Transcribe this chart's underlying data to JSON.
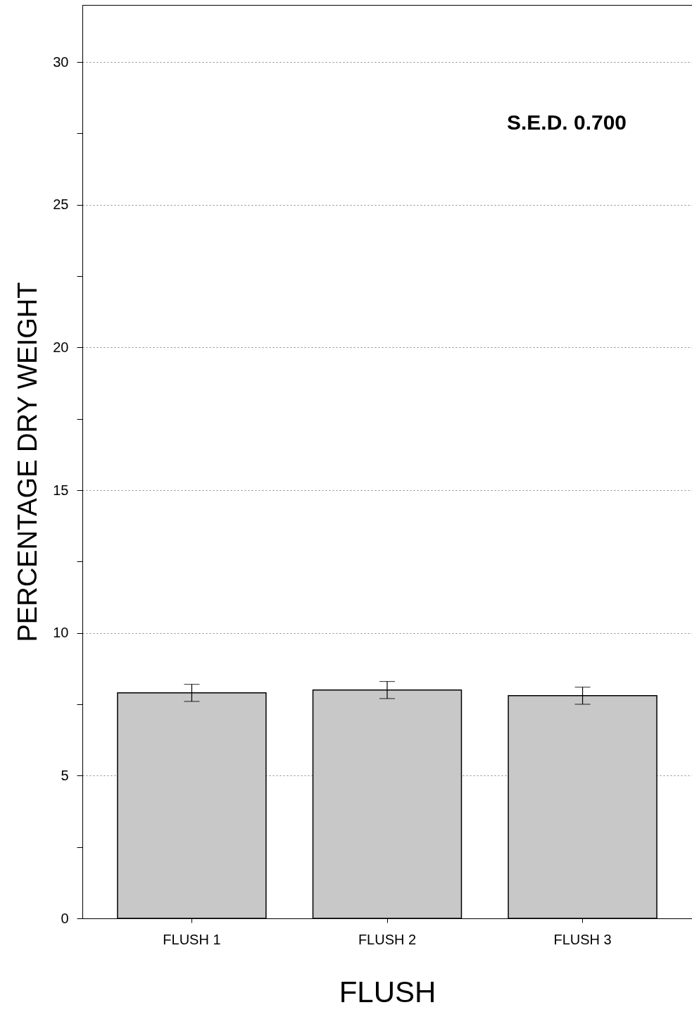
{
  "chart_data": {
    "type": "bar",
    "xlabel": "FLUSH",
    "ylabel": "PERCENTAGE DRY WEIGHT",
    "categories": [
      "FLUSH 1",
      "FLUSH 2",
      "FLUSH 3"
    ],
    "values": [
      7.9,
      8.0,
      7.8
    ],
    "errors": [
      0.3,
      0.3,
      0.3
    ],
    "color": "#c8c8c8",
    "ylim": [
      0,
      32
    ],
    "yticks": [
      0,
      {
        "value": 2.5,
        "label": null
      },
      5,
      {
        "value": 7.5,
        "label": null
      },
      10,
      {
        "value": 12.5,
        "label": null
      },
      15,
      {
        "value": 17.5,
        "label": null
      },
      20,
      {
        "value": 22.5,
        "label": null
      },
      25,
      {
        "value": 27.5,
        "label": null
      },
      30
    ],
    "grid": "y",
    "annotations": [
      "S.E.D. 0.700"
    ]
  }
}
